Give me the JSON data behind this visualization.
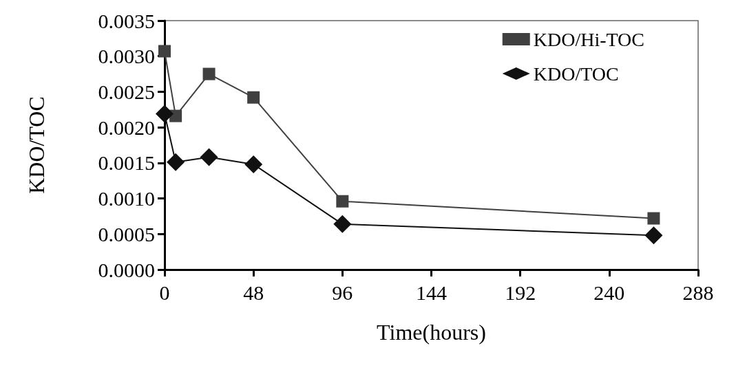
{
  "chart_data": {
    "type": "line",
    "xlabel": "Time(hours)",
    "ylabel": "KDO/TOC",
    "xlim": [
      0,
      288
    ],
    "xticks": [
      0,
      48,
      96,
      144,
      192,
      240,
      288
    ],
    "ylim": [
      0,
      0.0035
    ],
    "yticks": [
      {
        "value": 0,
        "label": "0.0000"
      },
      {
        "value": 0.0005,
        "label": "0.0005"
      },
      {
        "value": 0.001,
        "label": "0.0010"
      },
      {
        "value": 0.0015,
        "label": "0.0015"
      },
      {
        "value": 0.002,
        "label": "0.0020"
      },
      {
        "value": 0.0025,
        "label": "0.0025"
      },
      {
        "value": 0.003,
        "label": "0.0030"
      },
      {
        "value": 0.0035,
        "label": "0.0035"
      }
    ],
    "grid": false,
    "legend": "top right",
    "series": [
      {
        "name": "KDO/Hi-TOC",
        "color": "#404040",
        "marker": "square",
        "x": [
          0,
          6,
          24,
          48,
          96,
          264
        ],
        "values": [
          0.00307,
          0.00216,
          0.00275,
          0.00242,
          0.00096,
          0.00072
        ]
      },
      {
        "name": "KDO/TOC",
        "color": "#111111",
        "marker": "diamond",
        "x": [
          0,
          6,
          24,
          48,
          96,
          264
        ],
        "values": [
          0.00219,
          0.00151,
          0.00158,
          0.00148,
          0.00064,
          0.00048
        ]
      }
    ]
  }
}
